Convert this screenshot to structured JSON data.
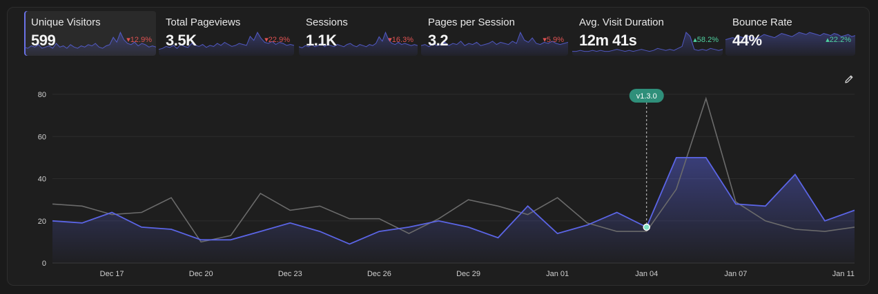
{
  "metrics": [
    {
      "label": "Unique Visitors",
      "value": "599",
      "change": "12.9%",
      "direction": "down",
      "active": true,
      "spark": [
        6,
        5,
        7,
        6,
        8,
        5,
        6,
        7,
        5,
        9,
        6,
        7,
        5,
        8,
        6,
        5,
        7,
        6,
        8,
        7,
        9,
        6,
        5,
        7,
        8,
        14,
        10,
        18,
        12,
        9,
        8,
        10,
        7,
        9,
        8,
        6,
        7,
        6
      ]
    },
    {
      "label": "Total Pageviews",
      "value": "3.5K",
      "change": "22.9%",
      "direction": "down",
      "active": false,
      "spark": [
        5,
        6,
        8,
        7,
        9,
        6,
        10,
        8,
        7,
        11,
        9,
        8,
        10,
        7,
        9,
        8,
        11,
        9,
        12,
        10,
        8,
        9,
        11,
        10,
        9,
        18,
        14,
        22,
        16,
        12,
        11,
        13,
        10,
        12,
        11,
        9,
        10,
        9
      ]
    },
    {
      "label": "Sessions",
      "value": "1.1K",
      "change": "16.3%",
      "direction": "down",
      "active": false,
      "spark": [
        7,
        6,
        8,
        7,
        9,
        7,
        8,
        10,
        7,
        9,
        8,
        7,
        9,
        8,
        7,
        9,
        10,
        8,
        7,
        9,
        8,
        7,
        9,
        8,
        10,
        16,
        12,
        20,
        13,
        10,
        9,
        11,
        9,
        10,
        9,
        8,
        9,
        8
      ]
    },
    {
      "label": "Pages per Session",
      "value": "3.2",
      "change": "5.9%",
      "direction": "down",
      "active": false,
      "spark": [
        8,
        9,
        7,
        10,
        8,
        9,
        11,
        8,
        10,
        9,
        12,
        8,
        10,
        9,
        11,
        8,
        9,
        10,
        12,
        9,
        11,
        10,
        9,
        12,
        10,
        20,
        13,
        11,
        15,
        10,
        9,
        11,
        10,
        12,
        10,
        9,
        10,
        11
      ]
    },
    {
      "label": "Avg. Visit Duration",
      "value": "12m 41s",
      "change": "58.2%",
      "direction": "up",
      "active": false,
      "spark": [
        3,
        3,
        4,
        3,
        3,
        4,
        3,
        4,
        3,
        3,
        4,
        5,
        4,
        3,
        4,
        3,
        4,
        5,
        4,
        3,
        4,
        6,
        5,
        4,
        5,
        4,
        6,
        8,
        22,
        18,
        5,
        4,
        5,
        4,
        6,
        5,
        4,
        5
      ]
    },
    {
      "label": "Bounce Rate",
      "value": "44%",
      "change": "22.2%",
      "direction": "up",
      "active": false,
      "spark": [
        14,
        15,
        16,
        15,
        17,
        16,
        18,
        17,
        16,
        15,
        17,
        19,
        18,
        17,
        16,
        18,
        20,
        19,
        18,
        17,
        19,
        21,
        20,
        19,
        21,
        20,
        19,
        18,
        20,
        19,
        18,
        20,
        19,
        17,
        18,
        19,
        17,
        18
      ]
    }
  ],
  "release": {
    "label": "v1.3.0",
    "date": "Jan 04"
  },
  "chart_data": {
    "type": "area",
    "x": [
      "Dec 15",
      "Dec 16",
      "Dec 17",
      "Dec 18",
      "Dec 19",
      "Dec 20",
      "Dec 21",
      "Dec 22",
      "Dec 23",
      "Dec 24",
      "Dec 25",
      "Dec 26",
      "Dec 27",
      "Dec 28",
      "Dec 29",
      "Dec 30",
      "Dec 31",
      "Jan 01",
      "Jan 02",
      "Jan 03",
      "Jan 04",
      "Jan 05",
      "Jan 06",
      "Jan 07",
      "Jan 08",
      "Jan 09",
      "Jan 10",
      "Jan 11"
    ],
    "x_ticks": [
      "Dec 17",
      "Dec 20",
      "Dec 23",
      "Dec 26",
      "Dec 29",
      "Jan 01",
      "Jan 04",
      "Jan 07",
      "Jan 11"
    ],
    "series": [
      {
        "color": "#5b65e6",
        "values": [
          20,
          19,
          24,
          17,
          16,
          11,
          11,
          15,
          19,
          15,
          9,
          15,
          17,
          20,
          17,
          12,
          27,
          14,
          18,
          24,
          17,
          50,
          50,
          28,
          27,
          42,
          20,
          25
        ]
      },
      {
        "color": "#6b6b6b",
        "values": [
          28,
          27,
          23,
          24,
          31,
          10,
          13,
          33,
          25,
          27,
          21,
          21,
          14,
          21,
          30,
          27,
          23,
          31,
          19,
          15,
          15,
          35,
          78,
          29,
          20,
          16,
          15,
          17
        ]
      }
    ],
    "ylim": [
      0,
      80
    ],
    "y_ticks": [
      0,
      20,
      40,
      60,
      80
    ],
    "grid": true
  }
}
